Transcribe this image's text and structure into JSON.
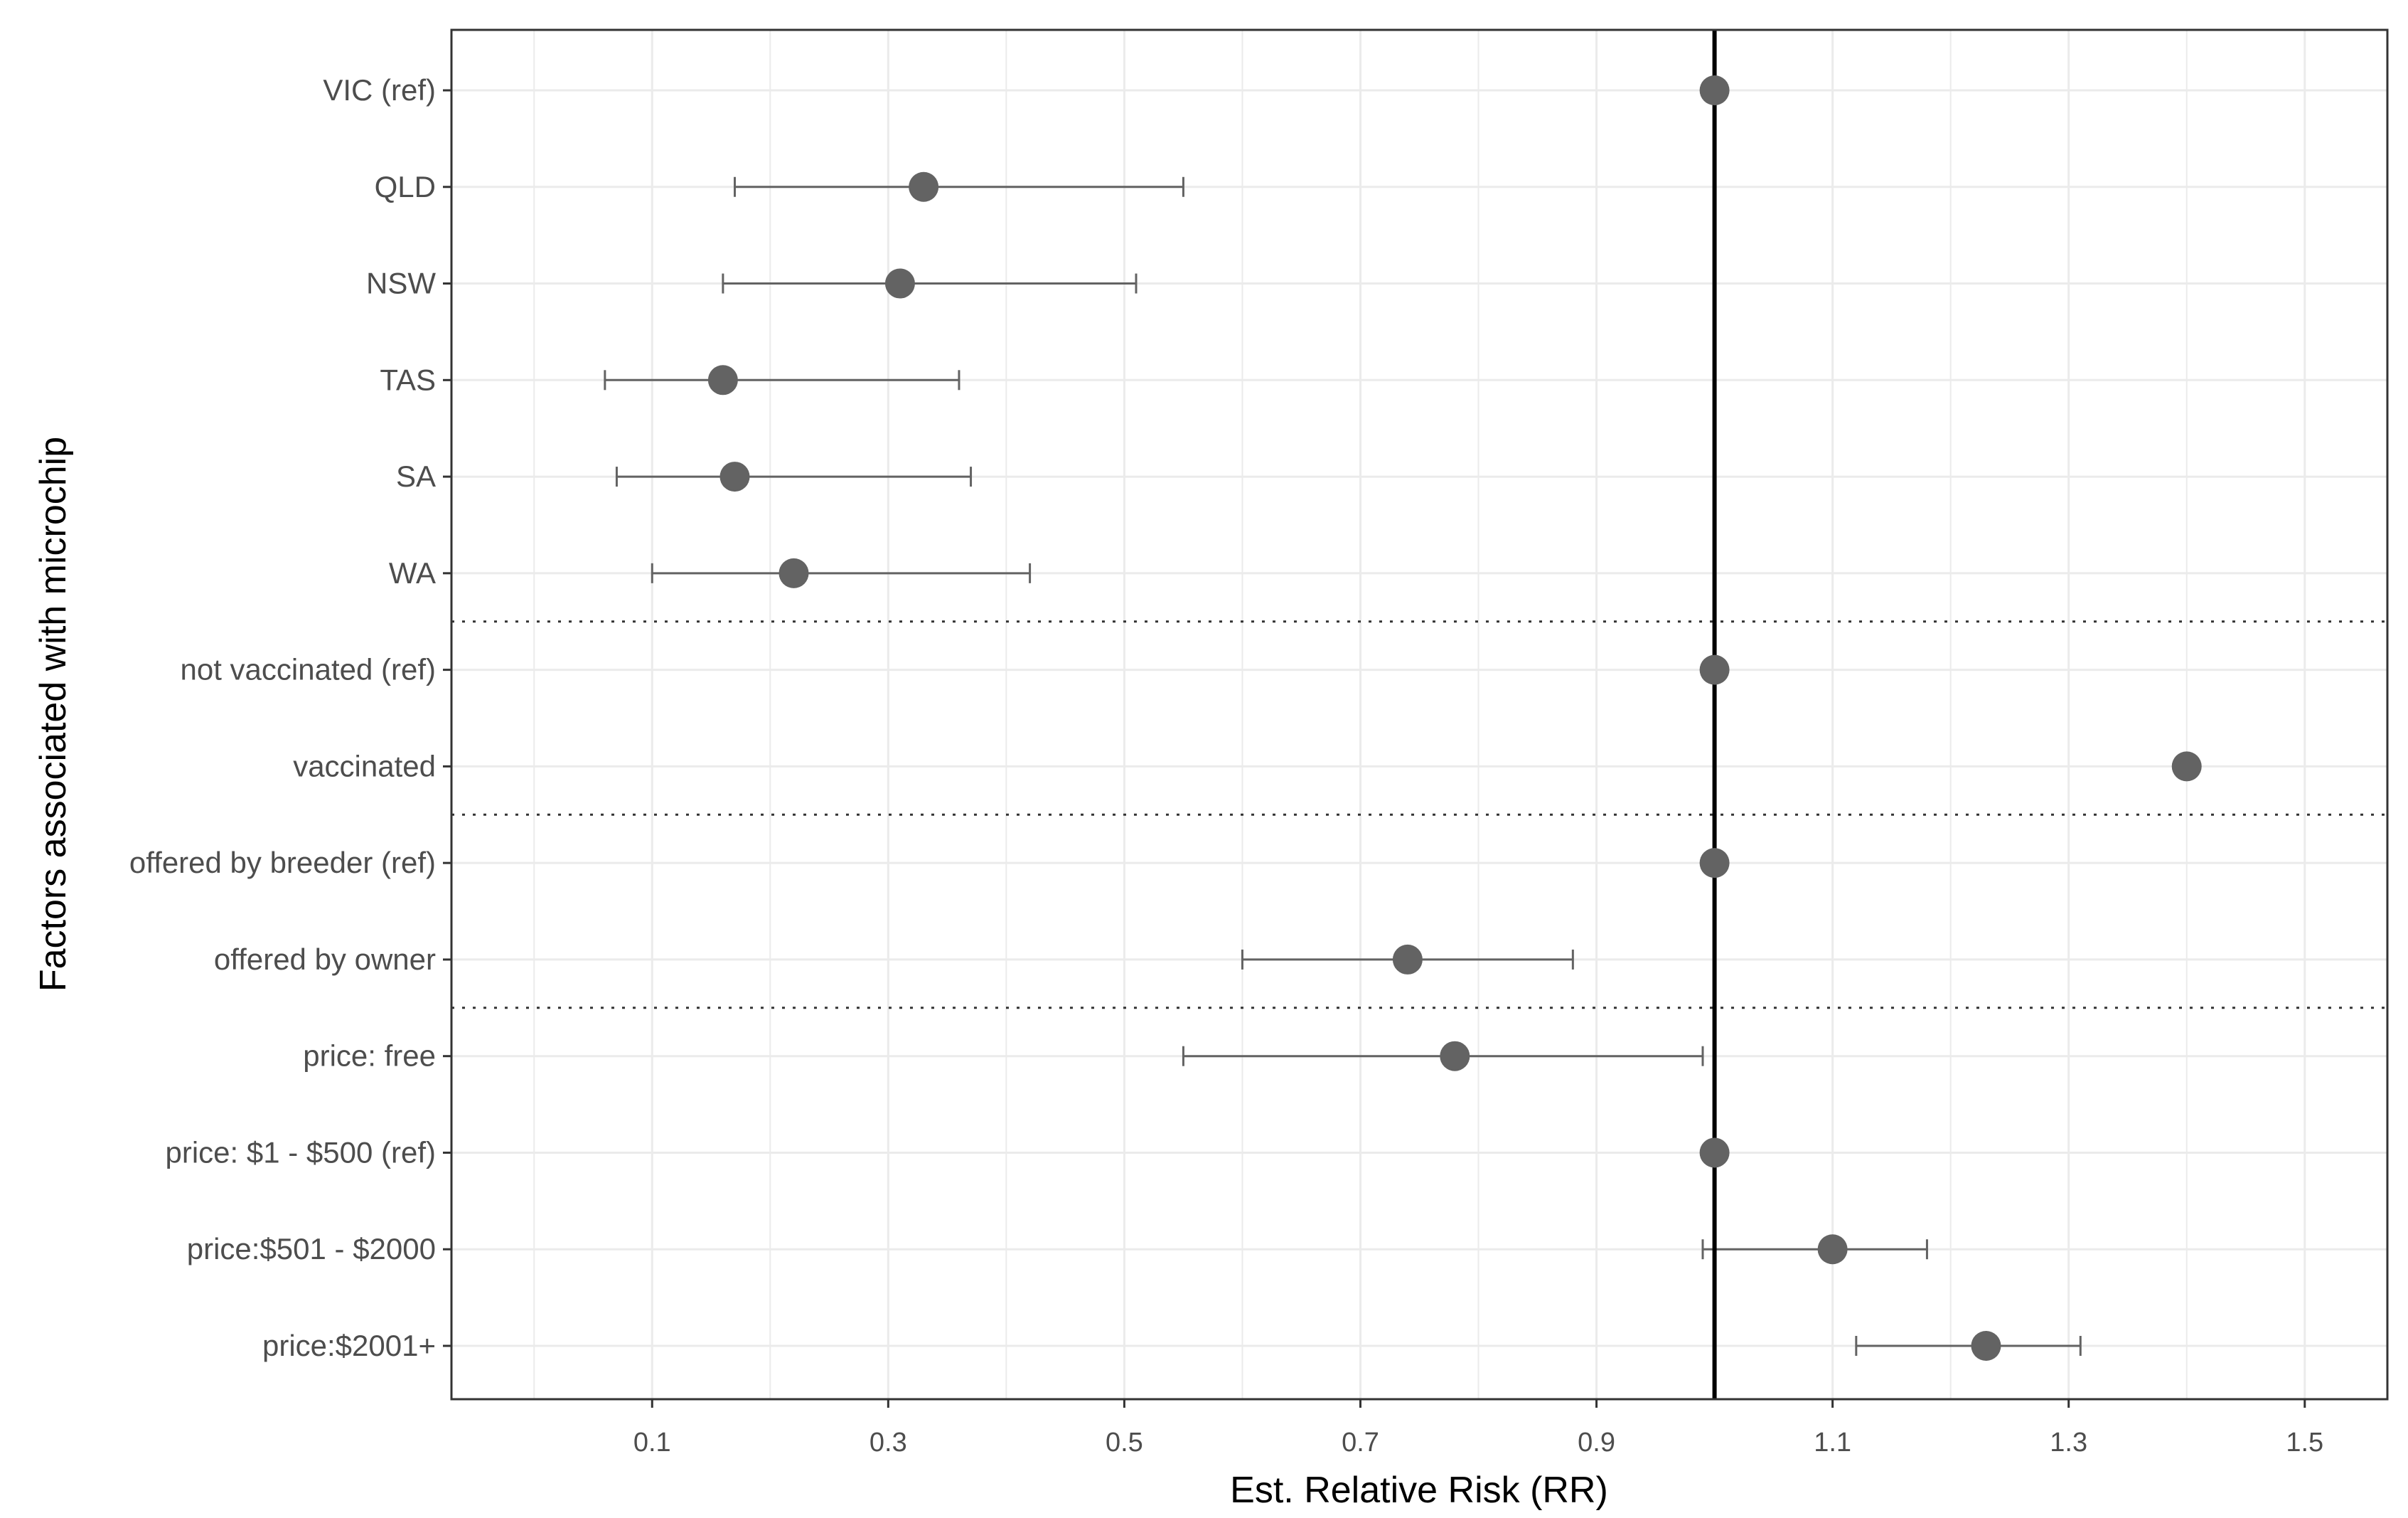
{
  "chart_data": {
    "type": "scatter",
    "subtype": "forest-plot",
    "title": "",
    "xlabel": "Est. Relative Risk (RR)",
    "ylabel": "Factors associated with microchip",
    "xlim": [
      -0.07,
      1.57
    ],
    "x_ticks": [
      "0.1",
      "0.3",
      "0.5",
      "0.7",
      "0.9",
      "1.1",
      "1.3",
      "1.5"
    ],
    "reference_line": 1,
    "grid": true,
    "colors": {
      "point": "#636363",
      "error_bar": "#636363",
      "reference": "#000000",
      "grid": "#ebebeb",
      "border": "#333333",
      "separator": "#333333"
    },
    "rows": [
      {
        "label": "VIC (ref)",
        "estimate": 1.0,
        "lower": null,
        "upper": null
      },
      {
        "label": "QLD",
        "estimate": 0.33,
        "lower": 0.17,
        "upper": 0.55
      },
      {
        "label": "NSW",
        "estimate": 0.31,
        "lower": 0.16,
        "upper": 0.51
      },
      {
        "label": "TAS",
        "estimate": 0.16,
        "lower": 0.06,
        "upper": 0.36
      },
      {
        "label": "SA",
        "estimate": 0.17,
        "lower": 0.07,
        "upper": 0.37
      },
      {
        "label": "WA",
        "estimate": 0.22,
        "lower": 0.1,
        "upper": 0.42
      },
      {
        "label": "not vaccinated (ref)",
        "estimate": 1.0,
        "lower": null,
        "upper": null
      },
      {
        "label": "vaccinated",
        "estimate": 1.4,
        "lower": null,
        "upper": null
      },
      {
        "label": "offered by breeder (ref)",
        "estimate": 1.0,
        "lower": null,
        "upper": null
      },
      {
        "label": "offered by owner",
        "estimate": 0.74,
        "lower": 0.6,
        "upper": 0.88
      },
      {
        "label": "price: free",
        "estimate": 0.78,
        "lower": 0.55,
        "upper": 0.99
      },
      {
        "label": "price: $1 - $500 (ref)",
        "estimate": 1.0,
        "lower": null,
        "upper": null
      },
      {
        "label": "price:$501 - $2000",
        "estimate": 1.1,
        "lower": 0.99,
        "upper": 1.18
      },
      {
        "label": "price:$2001+",
        "estimate": 1.23,
        "lower": 1.12,
        "upper": 1.31
      }
    ],
    "separators_after_rows": [
      "WA",
      "vaccinated",
      "offered by owner"
    ]
  }
}
